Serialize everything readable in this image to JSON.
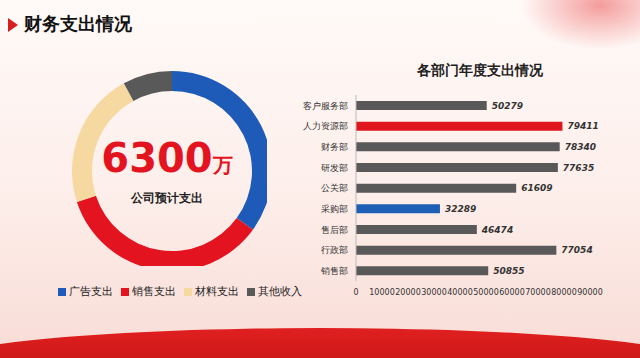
{
  "title": "财务支出情况",
  "chart_data": [
    {
      "type": "pie",
      "donut": true,
      "categories": [
        "广告支出",
        "销售支出",
        "材料支出",
        "其他收入"
      ],
      "values": [
        35,
        35,
        22,
        8
      ],
      "colors": [
        "#1e5bb8",
        "#e3141f",
        "#f5d9a0",
        "#595959"
      ],
      "legend": "bottom",
      "total": 6300,
      "total_unit": "万",
      "center_caption": "公司预计支出"
    },
    {
      "type": "bar",
      "title": "各部门年度支出情况",
      "orientation": "horizontal",
      "categories": [
        "客户服务部",
        "人力资源部",
        "财务部",
        "研发部",
        "公关部",
        "采购部",
        "售后部",
        "行政部",
        "销售部"
      ],
      "values": [
        50279,
        79411,
        78340,
        77635,
        61609,
        32289,
        46474,
        77054,
        50855
      ],
      "colors": [
        "#595959",
        "#e0161f",
        "#595959",
        "#595959",
        "#595959",
        "#1d5fb5",
        "#595959",
        "#595959",
        "#595959"
      ],
      "xlim": [
        0,
        90000
      ],
      "xticks": [
        0,
        10000,
        20000,
        30000,
        40000,
        50000,
        60000,
        70000,
        80000,
        90000
      ],
      "grid": false,
      "data_labels": true
    }
  ]
}
